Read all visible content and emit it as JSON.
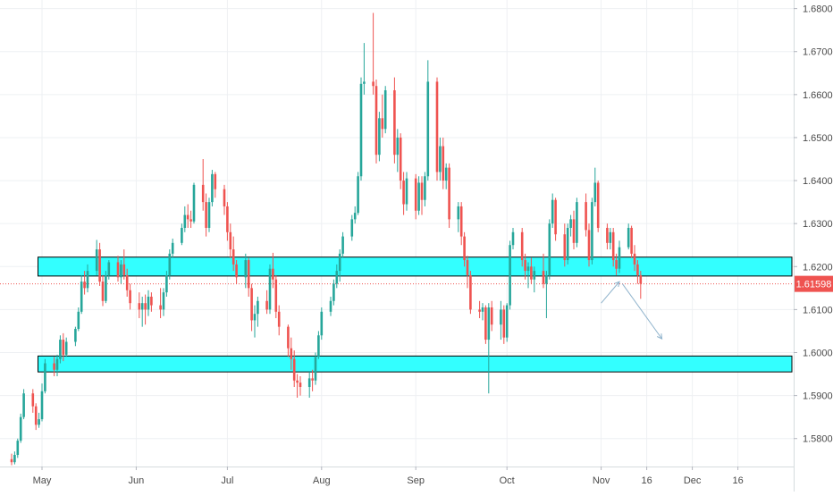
{
  "chart_data": {
    "type": "candlestick",
    "symbol": "",
    "y_ticks": [
      "1.68000",
      "1.67000",
      "1.66000",
      "1.65000",
      "1.64000",
      "1.63000",
      "1.62000",
      "1.61000",
      "1.60000",
      "1.59000",
      "1.58000"
    ],
    "x_ticks": [
      "May",
      "Jun",
      "Jul",
      "Aug",
      "Sep",
      "Oct",
      "Nov",
      "16",
      "Dec",
      "16"
    ],
    "ylim": [
      1.5735,
      1.682
    ],
    "current_price": {
      "label": "1.61598",
      "value": 1.61598,
      "color": "#ef5350"
    },
    "zones": [
      {
        "name": "resistance-zone",
        "from": 1.6178,
        "to": 1.6222,
        "fill": "#33ffff",
        "border": "#000000"
      },
      {
        "name": "support-zone",
        "from": 1.5955,
        "to": 1.5992,
        "fill": "#33ffff",
        "border": "#000000"
      }
    ],
    "colors": {
      "up": "#26a69a",
      "down": "#ef5350",
      "arrow": "#8fb3cc",
      "grid": "#eef0f3"
    },
    "arrows": [
      {
        "name": "projection-up",
        "from": [
          "Nov 1",
          1.6115
        ],
        "to": [
          "Nov 7",
          1.6165
        ]
      },
      {
        "name": "projection-down",
        "from": [
          "Nov 8",
          1.616
        ],
        "to": [
          "Nov 21",
          1.6032
        ]
      }
    ],
    "candles": [
      {
        "d": "Apr 21",
        "o": 1.5752,
        "h": 1.5765,
        "l": 1.5738,
        "c": 1.5745
      },
      {
        "d": "Apr 22",
        "o": 1.5745,
        "h": 1.577,
        "l": 1.574,
        "c": 1.5762
      },
      {
        "d": "Apr 23",
        "o": 1.5762,
        "h": 1.58,
        "l": 1.5755,
        "c": 1.5795
      },
      {
        "d": "Apr 24",
        "o": 1.5795,
        "h": 1.5858,
        "l": 1.579,
        "c": 1.585
      },
      {
        "d": "Apr 25",
        "o": 1.585,
        "h": 1.5915,
        "l": 1.5845,
        "c": 1.5905
      },
      {
        "d": "Apr 28",
        "o": 1.5905,
        "h": 1.5915,
        "l": 1.586,
        "c": 1.5875
      },
      {
        "d": "Apr 29",
        "o": 1.5875,
        "h": 1.5882,
        "l": 1.582,
        "c": 1.5832
      },
      {
        "d": "Apr 30",
        "o": 1.5832,
        "h": 1.586,
        "l": 1.5825,
        "c": 1.5845
      },
      {
        "d": "May 1",
        "o": 1.5845,
        "h": 1.5928,
        "l": 1.584,
        "c": 1.591
      },
      {
        "d": "May 2",
        "o": 1.591,
        "h": 1.5985,
        "l": 1.5905,
        "c": 1.5975
      },
      {
        "d": "May 5",
        "o": 1.5975,
        "h": 1.599,
        "l": 1.5945,
        "c": 1.596
      },
      {
        "d": "May 6",
        "o": 1.596,
        "h": 1.5995,
        "l": 1.5945,
        "c": 1.5985
      },
      {
        "d": "May 7",
        "o": 1.5985,
        "h": 1.604,
        "l": 1.5975,
        "c": 1.603
      },
      {
        "d": "May 8",
        "o": 1.603,
        "h": 1.6045,
        "l": 1.598,
        "c": 1.5995
      },
      {
        "d": "May 9",
        "o": 1.5995,
        "h": 1.6035,
        "l": 1.599,
        "c": 1.6025
      },
      {
        "d": "May 12",
        "o": 1.6025,
        "h": 1.606,
        "l": 1.6015,
        "c": 1.6055
      },
      {
        "d": "May 13",
        "o": 1.6055,
        "h": 1.6105,
        "l": 1.605,
        "c": 1.6095
      },
      {
        "d": "May 14",
        "o": 1.6095,
        "h": 1.618,
        "l": 1.609,
        "c": 1.6165
      },
      {
        "d": "May 15",
        "o": 1.6165,
        "h": 1.619,
        "l": 1.6135,
        "c": 1.615
      },
      {
        "d": "May 16",
        "o": 1.615,
        "h": 1.6205,
        "l": 1.614,
        "c": 1.619
      },
      {
        "d": "May 19",
        "o": 1.619,
        "h": 1.6262,
        "l": 1.618,
        "c": 1.624
      },
      {
        "d": "May 20",
        "o": 1.624,
        "h": 1.6255,
        "l": 1.6155,
        "c": 1.6165
      },
      {
        "d": "May 21",
        "o": 1.6165,
        "h": 1.618,
        "l": 1.6108,
        "c": 1.612
      },
      {
        "d": "May 22",
        "o": 1.612,
        "h": 1.619,
        "l": 1.6115,
        "c": 1.618
      },
      {
        "d": "May 23",
        "o": 1.618,
        "h": 1.6215,
        "l": 1.617,
        "c": 1.621
      },
      {
        "d": "May 26",
        "o": 1.621,
        "h": 1.6225,
        "l": 1.6165,
        "c": 1.6175
      },
      {
        "d": "May 27",
        "o": 1.6175,
        "h": 1.6215,
        "l": 1.616,
        "c": 1.6205
      },
      {
        "d": "May 28",
        "o": 1.6205,
        "h": 1.624,
        "l": 1.617,
        "c": 1.618
      },
      {
        "d": "May 29",
        "o": 1.618,
        "h": 1.6195,
        "l": 1.613,
        "c": 1.6145
      },
      {
        "d": "May 30",
        "o": 1.6145,
        "h": 1.616,
        "l": 1.61,
        "c": 1.6115
      },
      {
        "d": "Jun 2",
        "o": 1.6115,
        "h": 1.614,
        "l": 1.608,
        "c": 1.61
      },
      {
        "d": "Jun 3",
        "o": 1.61,
        "h": 1.613,
        "l": 1.606,
        "c": 1.6115
      },
      {
        "d": "Jun 4",
        "o": 1.6115,
        "h": 1.6135,
        "l": 1.6065,
        "c": 1.61
      },
      {
        "d": "Jun 5",
        "o": 1.61,
        "h": 1.6145,
        "l": 1.6085,
        "c": 1.613
      },
      {
        "d": "Jun 6",
        "o": 1.613,
        "h": 1.614,
        "l": 1.6095,
        "c": 1.611
      },
      {
        "d": "Jun 9",
        "o": 1.611,
        "h": 1.615,
        "l": 1.608,
        "c": 1.61
      },
      {
        "d": "Jun 10",
        "o": 1.61,
        "h": 1.615,
        "l": 1.6085,
        "c": 1.614
      },
      {
        "d": "Jun 11",
        "o": 1.614,
        "h": 1.619,
        "l": 1.613,
        "c": 1.618
      },
      {
        "d": "Jun 12",
        "o": 1.618,
        "h": 1.624,
        "l": 1.617,
        "c": 1.623
      },
      {
        "d": "Jun 13",
        "o": 1.623,
        "h": 1.6265,
        "l": 1.622,
        "c": 1.6255
      },
      {
        "d": "Jun 16",
        "o": 1.6255,
        "h": 1.63,
        "l": 1.625,
        "c": 1.629
      },
      {
        "d": "Jun 17",
        "o": 1.629,
        "h": 1.634,
        "l": 1.628,
        "c": 1.632
      },
      {
        "d": "Jun 18",
        "o": 1.632,
        "h": 1.6345,
        "l": 1.629,
        "c": 1.631
      },
      {
        "d": "Jun 19",
        "o": 1.631,
        "h": 1.633,
        "l": 1.629,
        "c": 1.6305
      },
      {
        "d": "Jun 20",
        "o": 1.6305,
        "h": 1.6395,
        "l": 1.63,
        "c": 1.639
      },
      {
        "d": "Jun 23",
        "o": 1.639,
        "h": 1.645,
        "l": 1.633,
        "c": 1.635
      },
      {
        "d": "Jun 24",
        "o": 1.635,
        "h": 1.637,
        "l": 1.627,
        "c": 1.629
      },
      {
        "d": "Jun 25",
        "o": 1.629,
        "h": 1.636,
        "l": 1.628,
        "c": 1.635
      },
      {
        "d": "Jun 26",
        "o": 1.635,
        "h": 1.6425,
        "l": 1.634,
        "c": 1.6415
      },
      {
        "d": "Jun 27",
        "o": 1.6415,
        "h": 1.642,
        "l": 1.636,
        "c": 1.638
      },
      {
        "d": "Jun 30",
        "o": 1.638,
        "h": 1.639,
        "l": 1.632,
        "c": 1.634
      },
      {
        "d": "Jul 1",
        "o": 1.634,
        "h": 1.635,
        "l": 1.626,
        "c": 1.628
      },
      {
        "d": "Jul 2",
        "o": 1.628,
        "h": 1.63,
        "l": 1.622,
        "c": 1.624
      },
      {
        "d": "Jul 3",
        "o": 1.624,
        "h": 1.627,
        "l": 1.619,
        "c": 1.6205
      },
      {
        "d": "Jul 4",
        "o": 1.6205,
        "h": 1.6215,
        "l": 1.616,
        "c": 1.6175
      },
      {
        "d": "Jul 7",
        "o": 1.6175,
        "h": 1.623,
        "l": 1.615,
        "c": 1.6215
      },
      {
        "d": "Jul 8",
        "o": 1.6215,
        "h": 1.622,
        "l": 1.613,
        "c": 1.615
      },
      {
        "d": "Jul 9",
        "o": 1.615,
        "h": 1.616,
        "l": 1.605,
        "c": 1.6075
      },
      {
        "d": "Jul 10",
        "o": 1.6075,
        "h": 1.611,
        "l": 1.6035,
        "c": 1.609
      },
      {
        "d": "Jul 11",
        "o": 1.609,
        "h": 1.613,
        "l": 1.606,
        "c": 1.612
      },
      {
        "d": "Jul 14",
        "o": 1.612,
        "h": 1.6145,
        "l": 1.609,
        "c": 1.61
      },
      {
        "d": "Jul 15",
        "o": 1.61,
        "h": 1.6205,
        "l": 1.609,
        "c": 1.6195
      },
      {
        "d": "Jul 16",
        "o": 1.6195,
        "h": 1.6232,
        "l": 1.615,
        "c": 1.617
      },
      {
        "d": "Jul 17",
        "o": 1.617,
        "h": 1.618,
        "l": 1.608,
        "c": 1.6095
      },
      {
        "d": "Jul 18",
        "o": 1.6095,
        "h": 1.611,
        "l": 1.604,
        "c": 1.606
      },
      {
        "d": "Jul 21",
        "o": 1.606,
        "h": 1.6065,
        "l": 1.599,
        "c": 1.601
      },
      {
        "d": "Jul 22",
        "o": 1.601,
        "h": 1.6035,
        "l": 1.596,
        "c": 1.5985
      },
      {
        "d": "Jul 23",
        "o": 1.5985,
        "h": 1.6005,
        "l": 1.592,
        "c": 1.5935
      },
      {
        "d": "Jul 24",
        "o": 1.5935,
        "h": 1.595,
        "l": 1.5895,
        "c": 1.593
      },
      {
        "d": "Jul 25",
        "o": 1.593,
        "h": 1.5945,
        "l": 1.59,
        "c": 1.592
      },
      {
        "d": "Jul 28",
        "o": 1.592,
        "h": 1.5955,
        "l": 1.5895,
        "c": 1.594
      },
      {
        "d": "Jul 29",
        "o": 1.594,
        "h": 1.596,
        "l": 1.591,
        "c": 1.5935
      },
      {
        "d": "Jul 30",
        "o": 1.5935,
        "h": 1.6,
        "l": 1.5925,
        "c": 1.599
      },
      {
        "d": "Jul 31",
        "o": 1.599,
        "h": 1.605,
        "l": 1.5985,
        "c": 1.604
      },
      {
        "d": "Aug 1",
        "o": 1.604,
        "h": 1.6105,
        "l": 1.603,
        "c": 1.6095
      },
      {
        "d": "Aug 4",
        "o": 1.6095,
        "h": 1.613,
        "l": 1.6085,
        "c": 1.612
      },
      {
        "d": "Aug 5",
        "o": 1.612,
        "h": 1.617,
        "l": 1.611,
        "c": 1.616
      },
      {
        "d": "Aug 6",
        "o": 1.616,
        "h": 1.6205,
        "l": 1.615,
        "c": 1.619
      },
      {
        "d": "Aug 7",
        "o": 1.619,
        "h": 1.624,
        "l": 1.6165,
        "c": 1.623
      },
      {
        "d": "Aug 8",
        "o": 1.623,
        "h": 1.628,
        "l": 1.622,
        "c": 1.627
      },
      {
        "d": "Aug 11",
        "o": 1.627,
        "h": 1.632,
        "l": 1.626,
        "c": 1.631
      },
      {
        "d": "Aug 12",
        "o": 1.631,
        "h": 1.634,
        "l": 1.63,
        "c": 1.6325
      },
      {
        "d": "Aug 13",
        "o": 1.6325,
        "h": 1.642,
        "l": 1.632,
        "c": 1.641
      },
      {
        "d": "Aug 14",
        "o": 1.641,
        "h": 1.664,
        "l": 1.64,
        "c": 1.6625
      },
      {
        "d": "Aug 15",
        "o": 1.6625,
        "h": 1.672,
        "l": 1.66,
        "c": 1.663
      },
      {
        "d": "Aug 18",
        "o": 1.663,
        "h": 1.679,
        "l": 1.66,
        "c": 1.662
      },
      {
        "d": "Aug 19",
        "o": 1.662,
        "h": 1.6635,
        "l": 1.644,
        "c": 1.646
      },
      {
        "d": "Aug 20",
        "o": 1.646,
        "h": 1.656,
        "l": 1.6445,
        "c": 1.6545
      },
      {
        "d": "Aug 21",
        "o": 1.6545,
        "h": 1.66,
        "l": 1.65,
        "c": 1.652
      },
      {
        "d": "Aug 22",
        "o": 1.652,
        "h": 1.662,
        "l": 1.651,
        "c": 1.661
      },
      {
        "d": "Aug 25",
        "o": 1.661,
        "h": 1.664,
        "l": 1.644,
        "c": 1.646
      },
      {
        "d": "Aug 26",
        "o": 1.646,
        "h": 1.652,
        "l": 1.642,
        "c": 1.65
      },
      {
        "d": "Aug 27",
        "o": 1.65,
        "h": 1.651,
        "l": 1.638,
        "c": 1.64
      },
      {
        "d": "Aug 28",
        "o": 1.64,
        "h": 1.642,
        "l": 1.632,
        "c": 1.6345
      },
      {
        "d": "Aug 29",
        "o": 1.6345,
        "h": 1.642,
        "l": 1.633,
        "c": 1.6405
      },
      {
        "d": "Sep 1",
        "o": 1.6405,
        "h": 1.6415,
        "l": 1.631,
        "c": 1.633
      },
      {
        "d": "Sep 2",
        "o": 1.633,
        "h": 1.641,
        "l": 1.632,
        "c": 1.6395
      },
      {
        "d": "Sep 3",
        "o": 1.6395,
        "h": 1.641,
        "l": 1.632,
        "c": 1.6355
      },
      {
        "d": "Sep 4",
        "o": 1.6355,
        "h": 1.642,
        "l": 1.634,
        "c": 1.641
      },
      {
        "d": "Sep 5",
        "o": 1.641,
        "h": 1.668,
        "l": 1.64,
        "c": 1.663
      },
      {
        "d": "Sep 8",
        "o": 1.663,
        "h": 1.664,
        "l": 1.64,
        "c": 1.642
      },
      {
        "d": "Sep 9",
        "o": 1.642,
        "h": 1.65,
        "l": 1.64,
        "c": 1.648
      },
      {
        "d": "Sep 10",
        "o": 1.648,
        "h": 1.65,
        "l": 1.638,
        "c": 1.64
      },
      {
        "d": "Sep 11",
        "o": 1.64,
        "h": 1.644,
        "l": 1.638,
        "c": 1.643
      },
      {
        "d": "Sep 12",
        "o": 1.643,
        "h": 1.644,
        "l": 1.629,
        "c": 1.631
      },
      {
        "d": "Sep 15",
        "o": 1.631,
        "h": 1.635,
        "l": 1.628,
        "c": 1.634
      },
      {
        "d": "Sep 16",
        "o": 1.634,
        "h": 1.635,
        "l": 1.625,
        "c": 1.627
      },
      {
        "d": "Sep 17",
        "o": 1.627,
        "h": 1.628,
        "l": 1.62,
        "c": 1.6215
      },
      {
        "d": "Sep 18",
        "o": 1.6215,
        "h": 1.6225,
        "l": 1.615,
        "c": 1.618
      },
      {
        "d": "Sep 19",
        "o": 1.618,
        "h": 1.619,
        "l": 1.609,
        "c": 1.61
      },
      {
        "d": "Sep 22",
        "o": 1.61,
        "h": 1.612,
        "l": 1.608,
        "c": 1.6095
      },
      {
        "d": "Sep 23",
        "o": 1.6095,
        "h": 1.6115,
        "l": 1.6075,
        "c": 1.6105
      },
      {
        "d": "Sep 24",
        "o": 1.6105,
        "h": 1.611,
        "l": 1.602,
        "c": 1.603
      },
      {
        "d": "Sep 25",
        "o": 1.603,
        "h": 1.6115,
        "l": 1.5905,
        "c": 1.6105
      },
      {
        "d": "Sep 26",
        "o": 1.6105,
        "h": 1.612,
        "l": 1.605,
        "c": 1.6065
      },
      {
        "d": "Sep 29",
        "o": 1.6065,
        "h": 1.612,
        "l": 1.603,
        "c": 1.61
      },
      {
        "d": "Sep 30",
        "o": 1.61,
        "h": 1.611,
        "l": 1.602,
        "c": 1.6035
      },
      {
        "d": "Oct 1",
        "o": 1.6035,
        "h": 1.6115,
        "l": 1.6025,
        "c": 1.611
      },
      {
        "d": "Oct 2",
        "o": 1.611,
        "h": 1.626,
        "l": 1.61,
        "c": 1.625
      },
      {
        "d": "Oct 3",
        "o": 1.625,
        "h": 1.629,
        "l": 1.624,
        "c": 1.628
      },
      {
        "d": "Oct 6",
        "o": 1.628,
        "h": 1.629,
        "l": 1.62,
        "c": 1.6215
      },
      {
        "d": "Oct 7",
        "o": 1.6215,
        "h": 1.623,
        "l": 1.617,
        "c": 1.619
      },
      {
        "d": "Oct 8",
        "o": 1.619,
        "h": 1.621,
        "l": 1.615,
        "c": 1.62
      },
      {
        "d": "Oct 9",
        "o": 1.62,
        "h": 1.622,
        "l": 1.616,
        "c": 1.617
      },
      {
        "d": "Oct 10",
        "o": 1.617,
        "h": 1.62,
        "l": 1.614,
        "c": 1.619
      },
      {
        "d": "Oct 13",
        "o": 1.619,
        "h": 1.623,
        "l": 1.615,
        "c": 1.616
      },
      {
        "d": "Oct 14",
        "o": 1.616,
        "h": 1.619,
        "l": 1.608,
        "c": 1.618
      },
      {
        "d": "Oct 15",
        "o": 1.618,
        "h": 1.631,
        "l": 1.617,
        "c": 1.63
      },
      {
        "d": "Oct 16",
        "o": 1.63,
        "h": 1.637,
        "l": 1.629,
        "c": 1.6355
      },
      {
        "d": "Oct 17",
        "o": 1.6355,
        "h": 1.636,
        "l": 1.626,
        "c": 1.6275
      },
      {
        "d": "Oct 20",
        "o": 1.6275,
        "h": 1.63,
        "l": 1.62,
        "c": 1.6215
      },
      {
        "d": "Oct 21",
        "o": 1.6215,
        "h": 1.63,
        "l": 1.6205,
        "c": 1.629
      },
      {
        "d": "Oct 22",
        "o": 1.629,
        "h": 1.632,
        "l": 1.627,
        "c": 1.631
      },
      {
        "d": "Oct 23",
        "o": 1.631,
        "h": 1.633,
        "l": 1.624,
        "c": 1.6255
      },
      {
        "d": "Oct 24",
        "o": 1.6255,
        "h": 1.636,
        "l": 1.6245,
        "c": 1.635
      },
      {
        "d": "Oct 27",
        "o": 1.635,
        "h": 1.637,
        "l": 1.627,
        "c": 1.6285
      },
      {
        "d": "Oct 28",
        "o": 1.6285,
        "h": 1.63,
        "l": 1.62,
        "c": 1.6215
      },
      {
        "d": "Oct 29",
        "o": 1.6215,
        "h": 1.636,
        "l": 1.6205,
        "c": 1.635
      },
      {
        "d": "Oct 30",
        "o": 1.635,
        "h": 1.643,
        "l": 1.634,
        "c": 1.6395
      },
      {
        "d": "Oct 31",
        "o": 1.6395,
        "h": 1.64,
        "l": 1.628,
        "c": 1.629
      },
      {
        "d": "Nov 3",
        "o": 1.629,
        "h": 1.63,
        "l": 1.624,
        "c": 1.6255
      },
      {
        "d": "Nov 4",
        "o": 1.6255,
        "h": 1.629,
        "l": 1.624,
        "c": 1.628
      },
      {
        "d": "Nov 5",
        "o": 1.628,
        "h": 1.629,
        "l": 1.62,
        "c": 1.6215
      },
      {
        "d": "Nov 6",
        "o": 1.6215,
        "h": 1.623,
        "l": 1.618,
        "c": 1.6195
      },
      {
        "d": "Nov 7",
        "o": 1.6195,
        "h": 1.626,
        "l": 1.6185,
        "c": 1.6245
      },
      {
        "d": "Nov 10",
        "o": 1.6245,
        "h": 1.63,
        "l": 1.624,
        "c": 1.629
      },
      {
        "d": "Nov 11",
        "o": 1.629,
        "h": 1.6295,
        "l": 1.622,
        "c": 1.623
      },
      {
        "d": "Nov 12",
        "o": 1.623,
        "h": 1.625,
        "l": 1.619,
        "c": 1.6205
      },
      {
        "d": "Nov 13",
        "o": 1.6205,
        "h": 1.6215,
        "l": 1.616,
        "c": 1.618
      },
      {
        "d": "Nov 14",
        "o": 1.618,
        "h": 1.619,
        "l": 1.6125,
        "c": 1.616
      }
    ]
  }
}
